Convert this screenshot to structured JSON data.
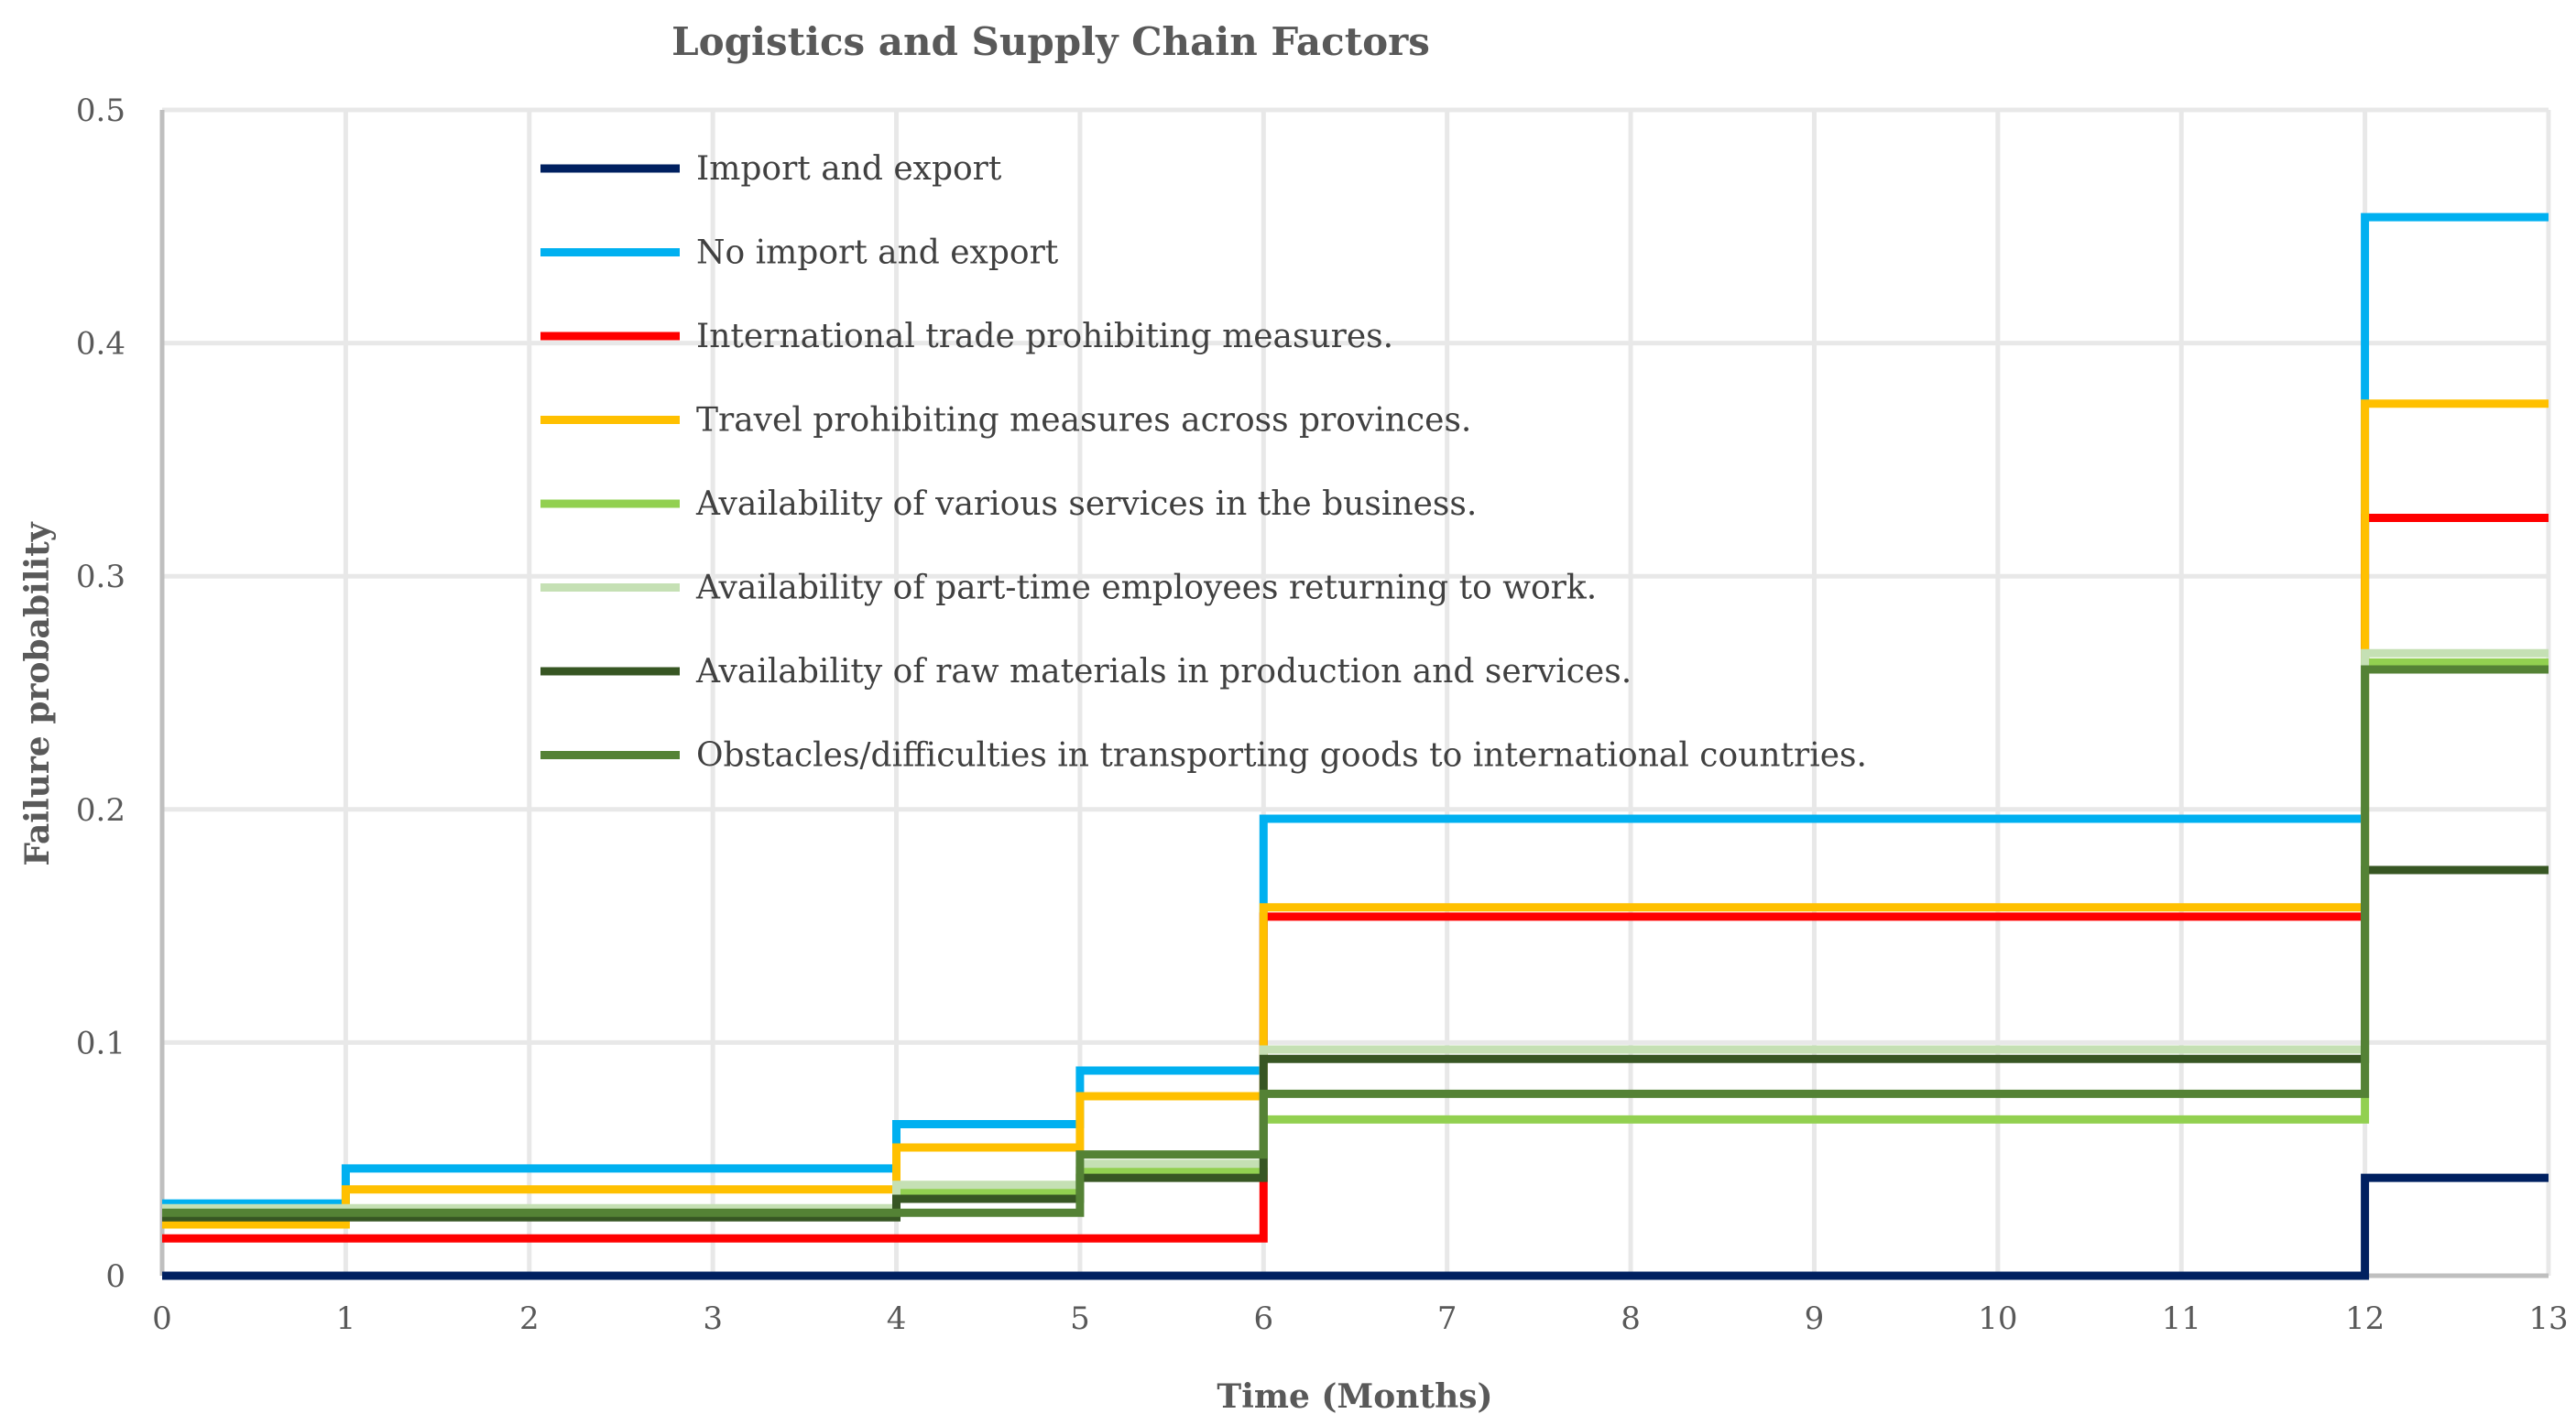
{
  "chart_data": {
    "type": "line",
    "step": true,
    "title": "Logistics and Supply Chain Factors",
    "xlabel": "Time (Months)",
    "ylabel": "Failure probability",
    "x_ticks": [
      0,
      1,
      2,
      3,
      4,
      5,
      6,
      7,
      8,
      9,
      10,
      11,
      12,
      13
    ],
    "y_ticks": [
      0,
      0.1,
      0.2,
      0.3,
      0.4,
      0.5
    ],
    "y_tick_labels": [
      "0",
      "0.1",
      "0.2",
      "0.3",
      "0.4",
      "0.5"
    ],
    "xlim": [
      0,
      13
    ],
    "ylim": [
      0,
      0.5
    ],
    "grid": true,
    "legend_position": "top-center",
    "x": [
      0,
      1,
      4,
      5,
      6,
      12,
      13
    ],
    "series": [
      {
        "name": "Import and export",
        "color": "#002060",
        "values": [
          0.0,
          0.0,
          0.0,
          0.0,
          0.0,
          0.042,
          0.042
        ]
      },
      {
        "name": "No import and export",
        "color": "#00B0F0",
        "values": [
          0.031,
          0.046,
          0.065,
          0.088,
          0.196,
          0.454,
          0.454
        ]
      },
      {
        "name": "International trade prohibiting measures.",
        "color": "#FF0000",
        "values": [
          0.016,
          0.016,
          0.016,
          0.016,
          0.154,
          0.325,
          0.325
        ]
      },
      {
        "name": "Travel prohibiting measures across provinces.",
        "color": "#FFC000",
        "values": [
          0.022,
          0.037,
          0.055,
          0.077,
          0.158,
          0.374,
          0.374
        ]
      },
      {
        "name": "Availability of various services in the business.",
        "color": "#92D050",
        "values": [
          0.026,
          0.026,
          0.036,
          0.045,
          0.067,
          0.263,
          0.263
        ]
      },
      {
        "name": "Availability of part-time employees returning to work.",
        "color": "#C5E0B4",
        "values": [
          0.029,
          0.029,
          0.039,
          0.048,
          0.097,
          0.267,
          0.267
        ]
      },
      {
        "name": "Availability of raw materials in production and services.",
        "color": "#375623",
        "values": [
          0.025,
          0.025,
          0.033,
          0.042,
          0.093,
          0.174,
          0.174
        ]
      },
      {
        "name": "Obstacles/difficulties in transporting goods to international countries.",
        "color": "#548235",
        "values": [
          0.027,
          0.027,
          0.027,
          0.052,
          0.078,
          0.26,
          0.26
        ]
      }
    ]
  }
}
